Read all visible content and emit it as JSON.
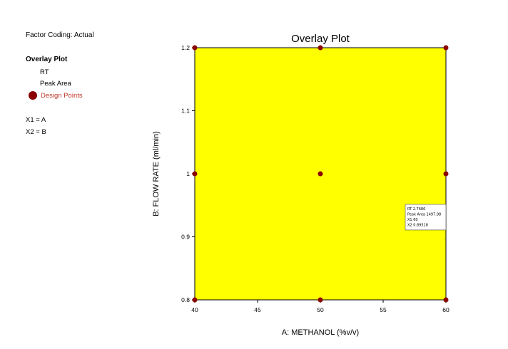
{
  "legend": {
    "factor_coding": "Factor Coding: Actual",
    "title": "Overlay Plot",
    "items": [
      "RT",
      "Peak Area"
    ],
    "design_points_label": "Design Points",
    "x1_map": "X1 = A",
    "x2_map": "X2 = B"
  },
  "colors": {
    "region_fill": "#ffff00",
    "design_point": "#8b0000",
    "design_points_text": "#c0392b"
  },
  "chart_data": {
    "type": "scatter",
    "title": "Overlay Plot",
    "xlabel": "A: METHANOL (%v/v)",
    "ylabel": "B: FLOW RATE (ml/min)",
    "xlim": [
      40,
      60
    ],
    "ylim": [
      0.8,
      1.2
    ],
    "x_ticks": [
      40,
      45,
      50,
      55,
      60
    ],
    "x_tick_labels": [
      "40",
      "45",
      "50",
      "55",
      "60"
    ],
    "y_ticks": [
      0.8,
      0.9,
      1.0,
      1.1,
      1.2
    ],
    "y_tick_labels": [
      "0.8",
      "0.9",
      "1",
      "1.1",
      "1.2"
    ],
    "region": "full yellow feasible region",
    "series": [
      {
        "name": "Design Points",
        "points": [
          {
            "x": 40,
            "y": 1.2
          },
          {
            "x": 50,
            "y": 1.2
          },
          {
            "x": 60,
            "y": 1.2
          },
          {
            "x": 40,
            "y": 1.0
          },
          {
            "x": 50,
            "y": 1.0
          },
          {
            "x": 60,
            "y": 1.0
          },
          {
            "x": 40,
            "y": 0.8
          },
          {
            "x": 50,
            "y": 0.8
          },
          {
            "x": 60,
            "y": 0.8
          }
        ]
      }
    ],
    "annotation": {
      "anchor_x": 60,
      "anchor_y": 0.895,
      "lines": [
        "RT   2.7686",
        "Peak Area   1497.98",
        "X1   60",
        "X2   0.89518"
      ]
    }
  }
}
